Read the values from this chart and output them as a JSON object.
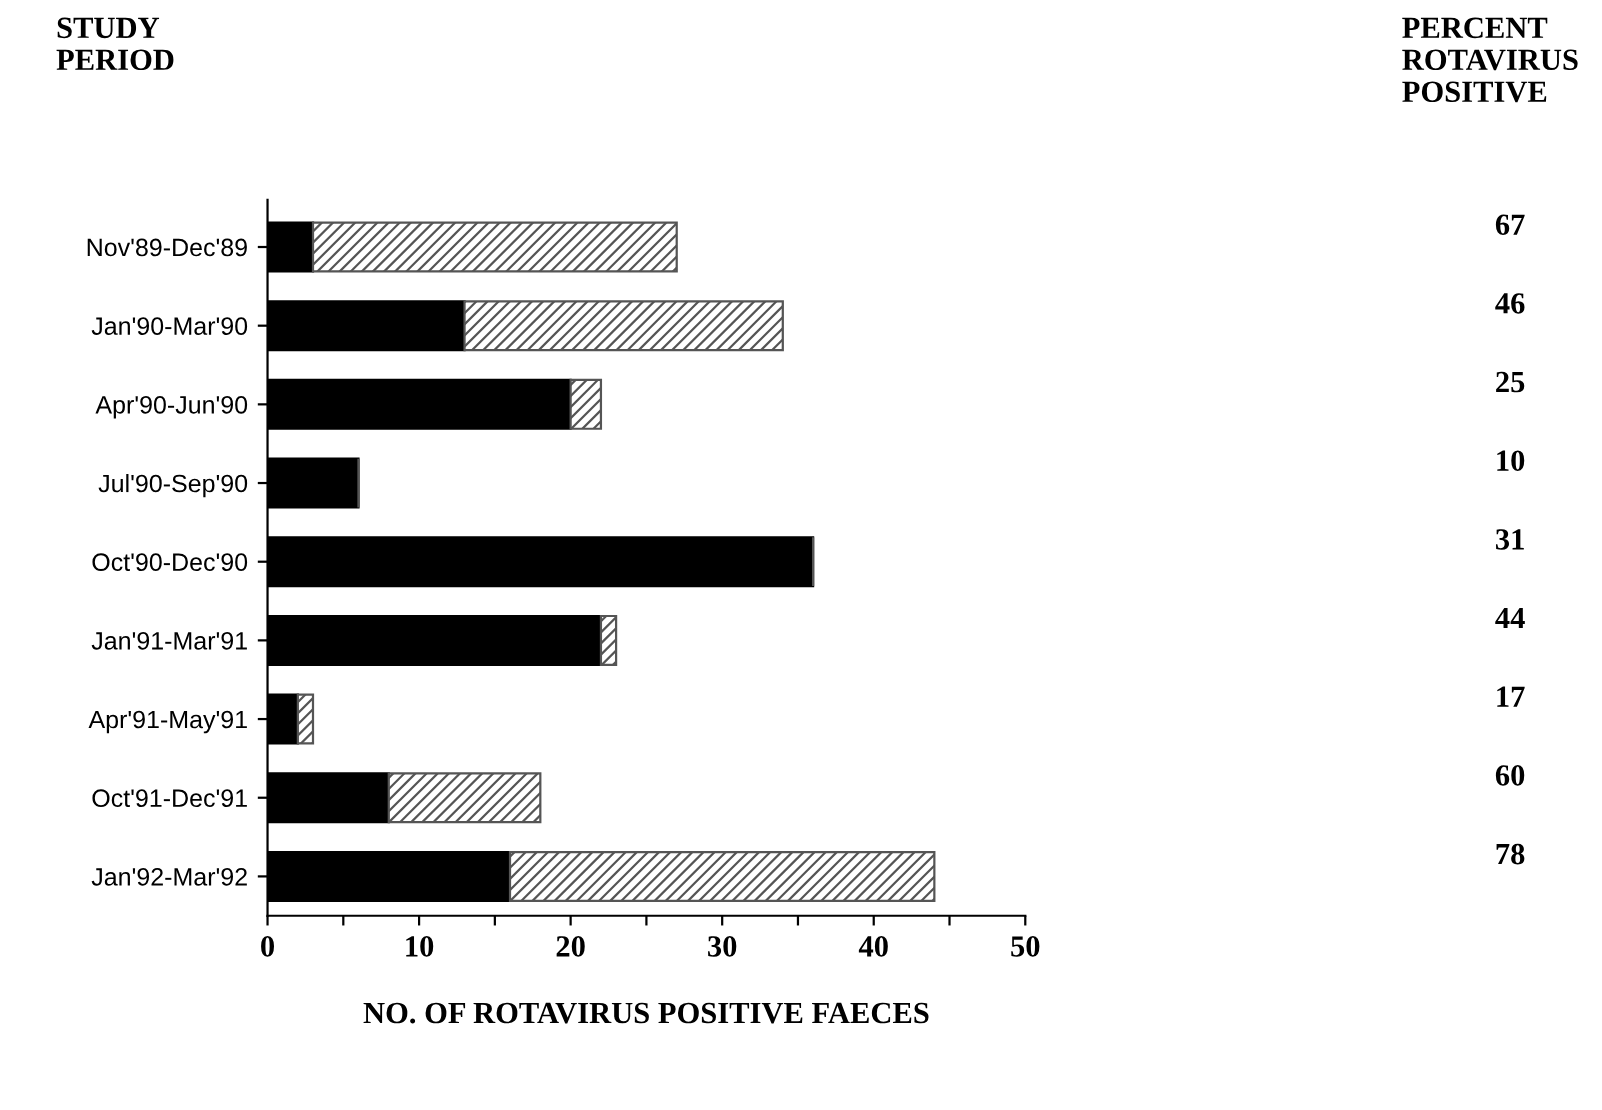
{
  "chart_data": {
    "type": "bar",
    "orientation": "horizontal",
    "stacked": true,
    "xlabel": "NO. OF ROTAVIRUS POSITIVE FAECES",
    "categories": [
      "Nov'89-Dec'89",
      "Jan'90-Mar'90",
      "Apr'90-Jun'90",
      "Jul'90-Sep'90",
      "Oct'90-Dec'90",
      "Jan'91-Mar'91",
      "Apr'91-May'91",
      "Oct'91-Dec'91",
      "Jan'92-Mar'92"
    ],
    "series": [
      {
        "color": "#000000",
        "values": [
          3,
          13,
          20,
          6,
          36,
          22,
          2,
          8,
          16
        ]
      },
      {
        "color": "#555555",
        "values": [
          24,
          21,
          2,
          0,
          0,
          1,
          1,
          10,
          28
        ]
      }
    ],
    "xlim": [
      0,
      50
    ],
    "xticks": [
      0,
      {
        "value": 5,
        "label": null
      },
      10,
      {
        "value": 15,
        "label": null
      },
      20,
      {
        "value": 25,
        "label": null
      },
      30,
      {
        "value": 35,
        "label": null
      },
      40,
      {
        "value": 45,
        "label": null
      },
      50
    ],
    "grid": false,
    "legend": false,
    "annotations": [
      "STUDY\nPERIOD",
      "PERCENT\nROTAVIRUS\nPOSITIVE",
      "67",
      "46",
      "25",
      "10",
      "31",
      "44",
      "17",
      "60",
      "78"
    ]
  }
}
